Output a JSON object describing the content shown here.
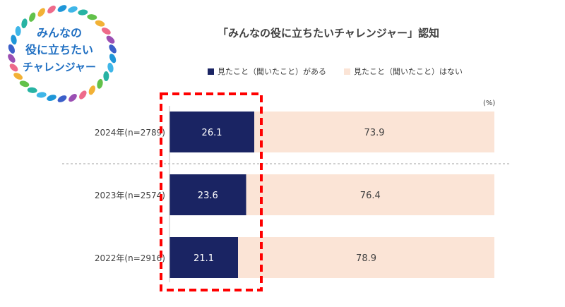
{
  "logo": {
    "lines": [
      "みんなの",
      "役に立ちたい",
      "チャレンジャー"
    ],
    "colors": [
      "#1e96d8",
      "#3fb6e8",
      "#27b3a3",
      "#62c14a",
      "#f2b135",
      "#ee6a8a",
      "#9b4fb3",
      "#3b5fc9"
    ]
  },
  "chart_data": {
    "type": "bar",
    "orientation": "horizontal",
    "stacked": true,
    "title": "「みんなの役に立ちたいチャレンジャー」認知",
    "unit_label": "(%)",
    "categories": [
      "2024年(n=2789)",
      "2023年(n=2574)",
      "2022年(n=2916)"
    ],
    "series": [
      {
        "name": "見たこと（聞いたこと）がある",
        "values": [
          26.1,
          23.6,
          21.1
        ],
        "color": "#1a2463"
      },
      {
        "name": "見たこと（聞いたこと）はない",
        "values": [
          73.9,
          76.4,
          78.9
        ],
        "color": "#fbe4d6"
      }
    ],
    "xlim": [
      0,
      100
    ],
    "legend_position": "top",
    "highlight_color": "#ff0000"
  }
}
